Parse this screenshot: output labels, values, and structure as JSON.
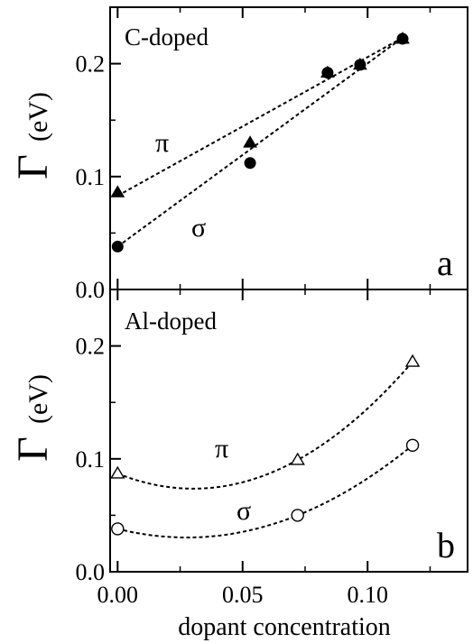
{
  "chart_data": [
    {
      "panel": "a",
      "type": "scatter",
      "panel_label": "a",
      "annotation": "C-doped",
      "ylabel_symbol": "Γ",
      "ylabel_unit": "(eV)",
      "xlim": [
        -0.003,
        0.14
      ],
      "ylim": [
        0.0,
        0.25
      ],
      "yticks": [
        0.0,
        0.1,
        0.2
      ],
      "ytick_labels": [
        "0.0",
        "0.1",
        "0.2"
      ],
      "xticks": [
        0.0,
        0.05,
        0.1
      ],
      "series": [
        {
          "name": "π",
          "marker": "filled-triangle",
          "x": [
            0.0,
            0.053,
            0.084,
            0.097,
            0.114
          ],
          "y": [
            0.086,
            0.13,
            0.192,
            0.199,
            0.222
          ],
          "fit": "linear",
          "fit_x": [
            0.0,
            0.114
          ],
          "fit_y": [
            0.083,
            0.223
          ]
        },
        {
          "name": "σ",
          "marker": "filled-circle",
          "x": [
            0.0,
            0.053,
            0.084,
            0.097,
            0.114
          ],
          "y": [
            0.038,
            0.112,
            0.192,
            0.199,
            0.222
          ],
          "fit": "linear",
          "fit_x": [
            0.0,
            0.114
          ],
          "fit_y": [
            0.038,
            0.223
          ]
        }
      ]
    },
    {
      "panel": "b",
      "type": "scatter",
      "panel_label": "b",
      "annotation": "Al-doped",
      "ylabel_symbol": "Γ",
      "ylabel_unit": "(eV)",
      "xlabel": "dopant concentration",
      "xlim": [
        -0.003,
        0.14
      ],
      "ylim": [
        0.0,
        0.25
      ],
      "yticks": [
        0.0,
        0.1,
        0.2
      ],
      "ytick_labels": [
        "0.0",
        "0.1",
        "0.2"
      ],
      "xticks": [
        0.0,
        0.05,
        0.1
      ],
      "xtick_labels": [
        "0.00",
        "0.05",
        "0.10"
      ],
      "series": [
        {
          "name": "π",
          "marker": "open-triangle",
          "x": [
            0.0,
            0.072,
            0.118
          ],
          "y": [
            0.087,
            0.099,
            0.186
          ],
          "fit": "polynomial"
        },
        {
          "name": "σ",
          "marker": "open-circle",
          "x": [
            0.0,
            0.072,
            0.118
          ],
          "y": [
            0.038,
            0.05,
            0.112
          ],
          "fit": "polynomial"
        }
      ]
    }
  ]
}
